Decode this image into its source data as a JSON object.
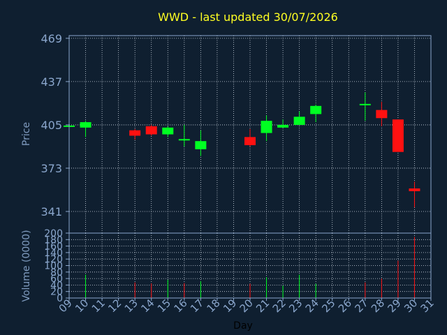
{
  "chart_data": [
    {
      "type": "candlestick",
      "title": "WWD - last updated 30/07/2026",
      "ylabel": "Price",
      "ylim": [
        325,
        471
      ],
      "yticks": [
        469,
        437,
        405,
        373,
        341
      ],
      "grid": true,
      "candles": [
        {
          "day": 9,
          "open": 404.0,
          "close": 404.0,
          "high": 405.0,
          "low": 403.0
        },
        {
          "day": 10,
          "open": 403.0,
          "close": 407.0,
          "high": 408.0,
          "low": 396.0
        },
        {
          "day": 13,
          "open": 401.0,
          "close": 397.0,
          "high": 402.0,
          "low": 394.0
        },
        {
          "day": 14,
          "open": 404.0,
          "close": 398.0,
          "high": 405.0,
          "low": 397.0
        },
        {
          "day": 15,
          "open": 398.0,
          "close": 403.0,
          "high": 404.0,
          "low": 396.0
        },
        {
          "day": 16,
          "open": 394.0,
          "close": 394.0,
          "high": 405.0,
          "low": 389.0
        },
        {
          "day": 17,
          "open": 387.0,
          "close": 393.0,
          "high": 401.0,
          "low": 382.0
        },
        {
          "day": 20,
          "open": 396.0,
          "close": 390.0,
          "high": 402.0,
          "low": 389.0
        },
        {
          "day": 21,
          "open": 399.0,
          "close": 408.0,
          "high": 412.0,
          "low": 393.0
        },
        {
          "day": 22,
          "open": 403.0,
          "close": 405.0,
          "high": 409.0,
          "low": 403.0
        },
        {
          "day": 23,
          "open": 405.0,
          "close": 411.0,
          "high": 415.0,
          "low": 405.0
        },
        {
          "day": 24,
          "open": 413.0,
          "close": 419.0,
          "high": 420.0,
          "low": 407.0
        },
        {
          "day": 27,
          "open": 420.0,
          "close": 420.0,
          "high": 429.0,
          "low": 408.0
        },
        {
          "day": 28,
          "open": 416.0,
          "close": 410.0,
          "high": 422.0,
          "low": 404.0
        },
        {
          "day": 29,
          "open": 409.0,
          "close": 385.0,
          "high": 409.0,
          "low": 385.0
        },
        {
          "day": 30,
          "open": 358.0,
          "close": 356.0,
          "high": 363.0,
          "low": 344.0
        }
      ]
    },
    {
      "type": "bar",
      "ylabel": "Volume (0000)",
      "xlabel": "Day",
      "ylim": [
        0,
        200
      ],
      "yticks": [
        200,
        180,
        160,
        140,
        120,
        100,
        80,
        60,
        40,
        20,
        0
      ],
      "xticks": [
        "09",
        "10",
        "11",
        "12",
        "13",
        "14",
        "15",
        "16",
        "17",
        "18",
        "19",
        "20",
        "21",
        "22",
        "23",
        "24",
        "25",
        "26",
        "27",
        "28",
        "29",
        "30",
        "31"
      ],
      "bars": [
        {
          "day": 10,
          "value": 72,
          "direction": "up"
        },
        {
          "day": 13,
          "value": 48,
          "direction": "down"
        },
        {
          "day": 14,
          "value": 45,
          "direction": "down"
        },
        {
          "day": 15,
          "value": 56,
          "direction": "up"
        },
        {
          "day": 16,
          "value": 46,
          "direction": "down"
        },
        {
          "day": 17,
          "value": 52,
          "direction": "up"
        },
        {
          "day": 20,
          "value": 44,
          "direction": "down"
        },
        {
          "day": 21,
          "value": 64,
          "direction": "up"
        },
        {
          "day": 22,
          "value": 38,
          "direction": "up"
        },
        {
          "day": 23,
          "value": 72,
          "direction": "up"
        },
        {
          "day": 24,
          "value": 44,
          "direction": "up"
        },
        {
          "day": 27,
          "value": 48,
          "direction": "down"
        },
        {
          "day": 28,
          "value": 60,
          "direction": "down"
        },
        {
          "day": 29,
          "value": 115,
          "direction": "down"
        },
        {
          "day": 30,
          "value": 188,
          "direction": "down"
        }
      ]
    }
  ],
  "colors": {
    "background": "#0f1f30",
    "axis": "#8aa6cc",
    "grid": "#cfd8e3",
    "title": "#ffff22",
    "label": "#7f9bbf",
    "up": "#00ff22",
    "down": "#ff1111",
    "xlabel": "#000000"
  }
}
